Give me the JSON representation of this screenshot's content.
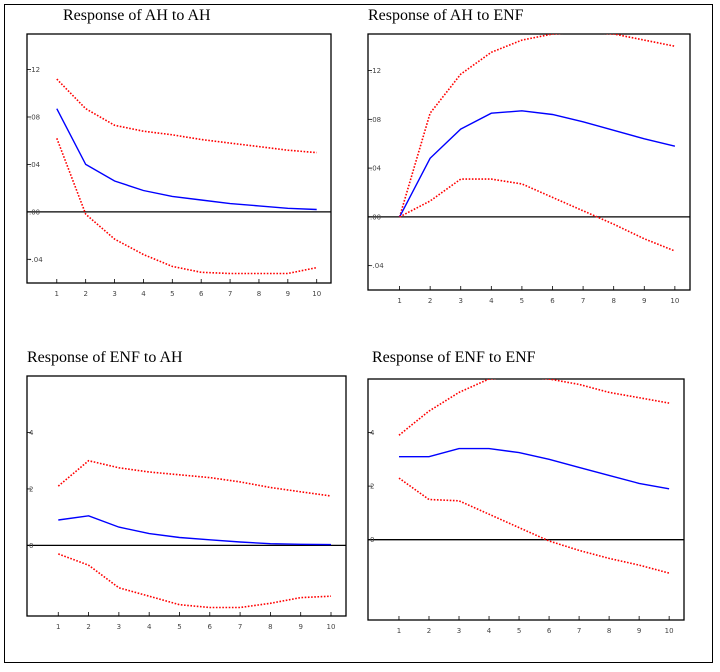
{
  "colors": {
    "response": "#0000ff",
    "bands": "#ff0000",
    "zero": "#000000"
  },
  "chart_data": [
    {
      "type": "line",
      "title": "Response of AH to AH",
      "x": [
        1,
        2,
        3,
        4,
        5,
        6,
        7,
        8,
        9,
        10
      ],
      "xticks": [
        "1",
        "2",
        "3",
        "4",
        "5",
        "6",
        "7",
        "8",
        "9",
        "10"
      ],
      "ylim": [
        -0.06,
        0.15
      ],
      "yticks": [
        {
          "v": 0.12,
          "label": ".12"
        },
        {
          "v": 0.08,
          "label": ".08"
        },
        {
          "v": 0.04,
          "label": ".04"
        },
        {
          "v": 0.0,
          "label": ".00"
        },
        {
          "v": -0.04,
          "label": "-.04"
        }
      ],
      "series": [
        {
          "role": "upper",
          "values": [
            0.112,
            0.087,
            0.073,
            0.068,
            0.065,
            0.061,
            0.058,
            0.055,
            0.052,
            0.05
          ]
        },
        {
          "role": "response",
          "values": [
            0.087,
            0.04,
            0.026,
            0.018,
            0.013,
            0.01,
            0.007,
            0.005,
            0.003,
            0.002
          ]
        },
        {
          "role": "lower",
          "values": [
            0.062,
            -0.002,
            -0.023,
            -0.036,
            -0.046,
            -0.051,
            -0.052,
            -0.052,
            -0.052,
            -0.047
          ]
        }
      ]
    },
    {
      "type": "line",
      "title": "Response of AH to ENF",
      "x": [
        1,
        2,
        3,
        4,
        5,
        6,
        7,
        8,
        9,
        10
      ],
      "xticks": [
        "1",
        "2",
        "3",
        "4",
        "5",
        "6",
        "7",
        "8",
        "9",
        "10"
      ],
      "ylim": [
        -0.06,
        0.15
      ],
      "yticks": [
        {
          "v": 0.12,
          "label": ".12"
        },
        {
          "v": 0.08,
          "label": ".08"
        },
        {
          "v": 0.04,
          "label": ".04"
        },
        {
          "v": 0.0,
          "label": ".00"
        },
        {
          "v": -0.04,
          "label": "-.04"
        }
      ],
      "series": [
        {
          "role": "upper",
          "values": [
            0.0,
            0.085,
            0.117,
            0.135,
            0.145,
            0.15,
            0.152,
            0.15,
            0.145,
            0.14
          ]
        },
        {
          "role": "response",
          "values": [
            0.0,
            0.048,
            0.072,
            0.085,
            0.087,
            0.084,
            0.078,
            0.071,
            0.064,
            0.058
          ]
        },
        {
          "role": "lower",
          "values": [
            0.0,
            0.013,
            0.031,
            0.031,
            0.027,
            0.016,
            0.005,
            -0.006,
            -0.018,
            -0.028
          ]
        }
      ]
    },
    {
      "type": "line",
      "title": "Response of ENF to AH",
      "x": [
        1,
        2,
        3,
        4,
        5,
        6,
        7,
        8,
        9,
        10
      ],
      "xticks": [
        "1",
        "2",
        "3",
        "4",
        "5",
        "6",
        "7",
        "8",
        "9",
        "10"
      ],
      "ylim": [
        -2.5,
        6.0
      ],
      "yticks": [
        {
          "v": 4,
          "label": "4"
        },
        {
          "v": 2,
          "label": "2"
        },
        {
          "v": 0,
          "label": "0"
        }
      ],
      "series": [
        {
          "role": "upper",
          "values": [
            2.1,
            3.0,
            2.75,
            2.6,
            2.5,
            2.4,
            2.25,
            2.05,
            1.9,
            1.75
          ]
        },
        {
          "role": "response",
          "values": [
            0.9,
            1.05,
            0.65,
            0.42,
            0.28,
            0.2,
            0.12,
            0.06,
            0.04,
            0.03
          ]
        },
        {
          "role": "lower",
          "values": [
            -0.3,
            -0.7,
            -1.5,
            -1.8,
            -2.1,
            -2.2,
            -2.2,
            -2.05,
            -1.85,
            -1.8
          ]
        }
      ]
    },
    {
      "type": "line",
      "title": "Response of ENF to ENF",
      "x": [
        1,
        2,
        3,
        4,
        5,
        6,
        7,
        8,
        9,
        10
      ],
      "xticks": [
        "1",
        "2",
        "3",
        "4",
        "5",
        "6",
        "7",
        "8",
        "9",
        "10"
      ],
      "ylim": [
        -3.0,
        6.0
      ],
      "yticks": [
        {
          "v": 4,
          "label": "4"
        },
        {
          "v": 2,
          "label": "2"
        },
        {
          "v": 0,
          "label": "0"
        }
      ],
      "series": [
        {
          "role": "upper",
          "values": [
            3.9,
            4.8,
            5.5,
            6.0,
            6.1,
            6.0,
            5.8,
            5.5,
            5.3,
            5.1
          ]
        },
        {
          "role": "response",
          "values": [
            3.1,
            3.1,
            3.4,
            3.4,
            3.25,
            3.0,
            2.7,
            2.4,
            2.1,
            1.9
          ]
        },
        {
          "role": "lower",
          "values": [
            2.3,
            1.5,
            1.45,
            0.95,
            0.45,
            -0.05,
            -0.4,
            -0.7,
            -0.95,
            -1.25
          ]
        }
      ]
    }
  ]
}
